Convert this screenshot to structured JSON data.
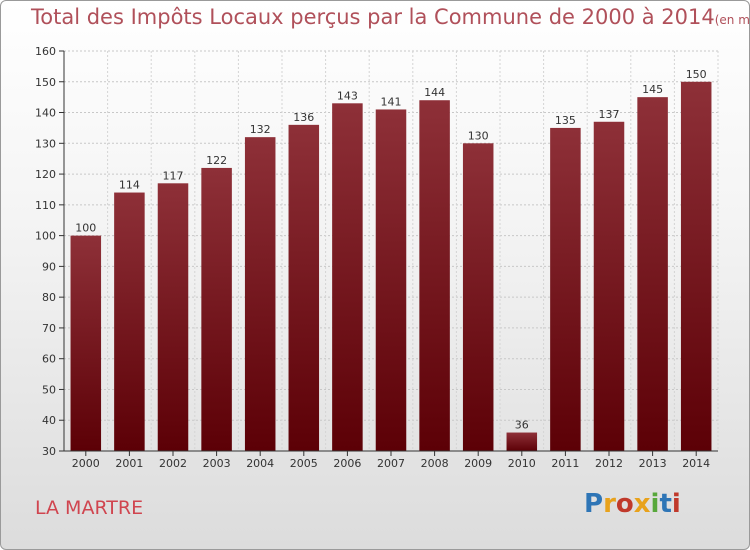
{
  "title": "Total des Impôts Locaux perçus par la Commune de 2000 à 2014",
  "subtitle": "(en milliers d'€)",
  "commune": "LA MARTRE",
  "logo": {
    "text": "Proxiti",
    "colors": [
      "#2e75b6",
      "#e8a21c",
      "#c0392b",
      "#e8a21c",
      "#58a83c",
      "#2e75b6",
      "#c0392b"
    ]
  },
  "chart_data": {
    "type": "bar",
    "categories": [
      "2000",
      "2001",
      "2002",
      "2003",
      "2004",
      "2005",
      "2006",
      "2007",
      "2008",
      "2009",
      "2010",
      "2011",
      "2012",
      "2013",
      "2014"
    ],
    "values": [
      100,
      114,
      117,
      122,
      132,
      136,
      143,
      141,
      144,
      130,
      36,
      135,
      137,
      145,
      150
    ],
    "ylim": [
      30,
      160
    ],
    "yticks": [
      30,
      40,
      50,
      60,
      70,
      80,
      90,
      100,
      110,
      120,
      130,
      140,
      150,
      160
    ],
    "grid": true,
    "bar_color": "#7a1a24"
  }
}
